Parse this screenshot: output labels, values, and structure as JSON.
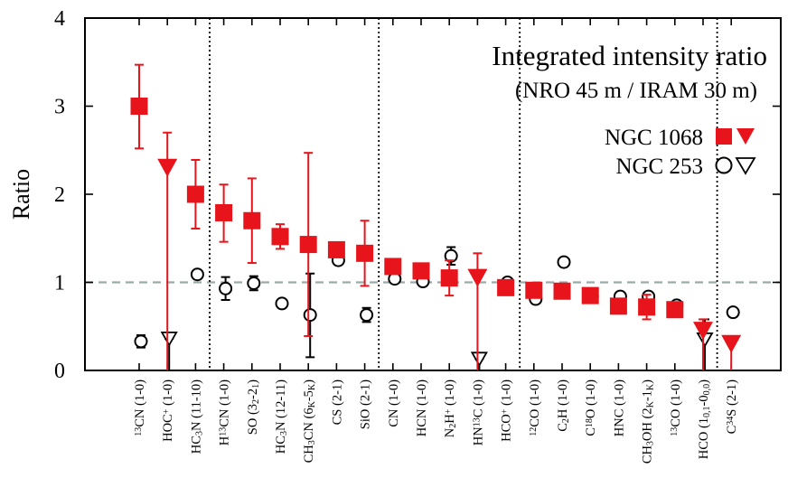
{
  "chart_data": {
    "type": "scatter",
    "title": "Integrated intensity ratio",
    "subtitle": "(NRO 45 m / IRAM 30 m)",
    "ylabel": "Ratio",
    "xlabel": "",
    "ylim": [
      0,
      4
    ],
    "yticks": [
      "0",
      "1",
      "2",
      "3",
      "4"
    ],
    "reference_line": 1,
    "separators_after_index": [
      2.5,
      8.5,
      13.5,
      20.5
    ],
    "categories": [
      {
        "main": "13CN (1-0)",
        "parts": [
          [
            "13",
            "sup"
          ],
          [
            "CN (1-0)",
            ""
          ]
        ]
      },
      {
        "main": "HOC+ (1-0)",
        "parts": [
          [
            "HOC",
            ""
          ],
          [
            "+",
            "sup"
          ],
          [
            " (1-0)",
            ""
          ]
        ]
      },
      {
        "main": "HC3N (11-10)",
        "parts": [
          [
            "HC",
            ""
          ],
          [
            "3",
            "sub"
          ],
          [
            "N (11-10)",
            ""
          ]
        ]
      },
      {
        "main": "H13CN (1-0)",
        "parts": [
          [
            "H",
            ""
          ],
          [
            "13",
            "sup"
          ],
          [
            "CN (1-0)",
            ""
          ]
        ]
      },
      {
        "main": "SO (32-21)",
        "parts": [
          [
            "SO (3",
            ""
          ],
          [
            "2",
            "sub"
          ],
          [
            "-2",
            ""
          ],
          [
            "1",
            "sub"
          ],
          [
            ")",
            ""
          ]
        ]
      },
      {
        "main": "HC3N (12-11)",
        "parts": [
          [
            "HC",
            ""
          ],
          [
            "3",
            "sub"
          ],
          [
            "N (12-11)",
            ""
          ]
        ]
      },
      {
        "main": "CH3CN (6K-5K)",
        "parts": [
          [
            "CH",
            ""
          ],
          [
            "3",
            "sub"
          ],
          [
            "CN (6",
            ""
          ],
          [
            "K",
            "sub"
          ],
          [
            "-5",
            ""
          ],
          [
            "K",
            "sub"
          ],
          [
            ")",
            ""
          ]
        ]
      },
      {
        "main": "CS (2-1)",
        "parts": [
          [
            "CS (2-1)",
            ""
          ]
        ]
      },
      {
        "main": "SiO (2-1)",
        "parts": [
          [
            "SiO (2-1)",
            ""
          ]
        ]
      },
      {
        "main": "CN (1-0)",
        "parts": [
          [
            "CN (1-0)",
            ""
          ]
        ]
      },
      {
        "main": "HCN (1-0)",
        "parts": [
          [
            "HCN (1-0)",
            ""
          ]
        ]
      },
      {
        "main": "N2H+ (1-0)",
        "parts": [
          [
            "N",
            ""
          ],
          [
            "2",
            "sub"
          ],
          [
            "H",
            ""
          ],
          [
            "+",
            "sup"
          ],
          [
            " (1-0)",
            ""
          ]
        ]
      },
      {
        "main": "HN13C (1-0)",
        "parts": [
          [
            "HN",
            ""
          ],
          [
            "13",
            "sup"
          ],
          [
            "C (1-0)",
            ""
          ]
        ]
      },
      {
        "main": "HCO+ (1-0)",
        "parts": [
          [
            "HCO",
            ""
          ],
          [
            "+",
            "sup"
          ],
          [
            " (1-0)",
            ""
          ]
        ]
      },
      {
        "main": "12CO (1-0)",
        "parts": [
          [
            "12",
            "sup"
          ],
          [
            "CO (1-0)",
            ""
          ]
        ]
      },
      {
        "main": "C2H (1-0)",
        "parts": [
          [
            "C",
            ""
          ],
          [
            "2",
            "sub"
          ],
          [
            "H (1-0)",
            ""
          ]
        ]
      },
      {
        "main": "C18O (1-0)",
        "parts": [
          [
            "C",
            ""
          ],
          [
            "18",
            "sup"
          ],
          [
            "O (1-0)",
            ""
          ]
        ]
      },
      {
        "main": "HNC (1-0)",
        "parts": [
          [
            "HNC (1-0)",
            ""
          ]
        ]
      },
      {
        "main": "CH3OH (2K-1K)",
        "parts": [
          [
            "CH",
            ""
          ],
          [
            "3",
            "sub"
          ],
          [
            "OH (2",
            ""
          ],
          [
            "K",
            "sub"
          ],
          [
            "-1",
            ""
          ],
          [
            "K",
            "sub"
          ],
          [
            ")",
            ""
          ]
        ]
      },
      {
        "main": "13CO (1-0)",
        "parts": [
          [
            "13",
            "sup"
          ],
          [
            "CO (1-0)",
            ""
          ]
        ]
      },
      {
        "main": "HCO (10,1-00,0)",
        "parts": [
          [
            "HCO (1",
            ""
          ],
          [
            "0,1",
            "sub"
          ],
          [
            "-0",
            ""
          ],
          [
            "0,0",
            "sub"
          ],
          [
            ")",
            ""
          ]
        ]
      },
      {
        "main": "C34S (2-1)",
        "parts": [
          [
            "C",
            ""
          ],
          [
            "34",
            "sup"
          ],
          [
            "S (2-1)",
            ""
          ]
        ]
      }
    ],
    "series": [
      {
        "name": "NGC 1068",
        "color": "#e8141b",
        "marker": "filled-square / filled-triangle (upper limit)",
        "points": [
          {
            "i": 0,
            "y": 3.0,
            "lo": 2.52,
            "hi": 3.47,
            "limit": false
          },
          {
            "i": 1,
            "y": 2.3,
            "lo": 0.0,
            "hi": 2.7,
            "limit": true
          },
          {
            "i": 2,
            "y": 2.0,
            "lo": 1.61,
            "hi": 2.39,
            "limit": false
          },
          {
            "i": 3,
            "y": 1.79,
            "lo": 1.46,
            "hi": 2.11,
            "limit": false
          },
          {
            "i": 4,
            "y": 1.7,
            "lo": 1.22,
            "hi": 2.18,
            "limit": false
          },
          {
            "i": 5,
            "y": 1.52,
            "lo": 1.38,
            "hi": 1.66,
            "limit": false
          },
          {
            "i": 6,
            "y": 1.43,
            "lo": 0.39,
            "hi": 2.47,
            "limit": false
          },
          {
            "i": 7,
            "y": 1.37,
            "lo": 1.32,
            "hi": 1.42,
            "limit": false
          },
          {
            "i": 8,
            "y": 1.33,
            "lo": 0.96,
            "hi": 1.7,
            "limit": false
          },
          {
            "i": 9,
            "y": 1.18,
            "lo": 1.14,
            "hi": 1.22,
            "limit": false
          },
          {
            "i": 10,
            "y": 1.13,
            "lo": 1.09,
            "hi": 1.17,
            "limit": false
          },
          {
            "i": 11,
            "y": 1.05,
            "lo": 0.85,
            "hi": 1.25,
            "limit": false
          },
          {
            "i": 12,
            "y": 1.05,
            "lo": 0.0,
            "hi": 1.33,
            "limit": true
          },
          {
            "i": 13,
            "y": 0.94,
            "lo": 0.91,
            "hi": 0.97,
            "limit": false
          },
          {
            "i": 14,
            "y": 0.91,
            "lo": 0.88,
            "hi": 0.94,
            "limit": false
          },
          {
            "i": 15,
            "y": 0.9,
            "lo": 0.87,
            "hi": 0.93,
            "limit": false
          },
          {
            "i": 16,
            "y": 0.85,
            "lo": 0.82,
            "hi": 0.88,
            "limit": false
          },
          {
            "i": 17,
            "y": 0.73,
            "lo": 0.7,
            "hi": 0.76,
            "limit": false
          },
          {
            "i": 18,
            "y": 0.72,
            "lo": 0.58,
            "hi": 0.86,
            "limit": false
          },
          {
            "i": 19,
            "y": 0.69,
            "lo": 0.66,
            "hi": 0.72,
            "limit": false
          },
          {
            "i": 20,
            "y": 0.45,
            "lo": 0.0,
            "hi": 0.58,
            "limit": true
          },
          {
            "i": 21,
            "y": 0.3,
            "lo": 0.0,
            "hi": 0.3,
            "limit": true
          }
        ]
      },
      {
        "name": "NGC 253",
        "color": "#000000",
        "marker": "open-circle / open-triangle (upper limit)",
        "points": [
          {
            "i": 0,
            "y": 0.33,
            "lo": 0.26,
            "hi": 0.4,
            "limit": false
          },
          {
            "i": 1,
            "y": 0.36,
            "lo": 0.0,
            "hi": 0.36,
            "limit": true
          },
          {
            "i": 2,
            "y": 1.09,
            "lo": 1.05,
            "hi": 1.13,
            "limit": false
          },
          {
            "i": 3,
            "y": 0.93,
            "lo": 0.8,
            "hi": 1.06,
            "limit": false
          },
          {
            "i": 4,
            "y": 0.99,
            "lo": 0.91,
            "hi": 1.07,
            "limit": false
          },
          {
            "i": 5,
            "y": 0.76,
            "lo": 0.72,
            "hi": 0.8,
            "limit": false
          },
          {
            "i": 6,
            "y": 0.63,
            "lo": 0.15,
            "hi": 1.1,
            "limit": false
          },
          {
            "i": 7,
            "y": 1.25,
            "lo": 1.22,
            "hi": 1.28,
            "limit": false
          },
          {
            "i": 8,
            "y": 0.63,
            "lo": 0.55,
            "hi": 0.71,
            "limit": false
          },
          {
            "i": 9,
            "y": 1.04,
            "lo": 1.01,
            "hi": 1.07,
            "limit": false
          },
          {
            "i": 10,
            "y": 1.01,
            "lo": 0.98,
            "hi": 1.04,
            "limit": false
          },
          {
            "i": 11,
            "y": 1.3,
            "lo": 1.2,
            "hi": 1.4,
            "limit": false
          },
          {
            "i": 12,
            "y": 0.13,
            "lo": 0.0,
            "hi": 0.13,
            "limit": true
          },
          {
            "i": 13,
            "y": 1.0,
            "lo": 0.97,
            "hi": 1.03,
            "limit": false
          },
          {
            "i": 14,
            "y": 0.81,
            "lo": 0.78,
            "hi": 0.84,
            "limit": false
          },
          {
            "i": 15,
            "y": 1.23,
            "lo": 1.19,
            "hi": 1.27,
            "limit": false
          },
          {
            "i": 16,
            "y": 0.84,
            "lo": 0.81,
            "hi": 0.87,
            "limit": false
          },
          {
            "i": 17,
            "y": 0.84,
            "lo": 0.81,
            "hi": 0.87,
            "limit": false
          },
          {
            "i": 18,
            "y": 0.84,
            "lo": 0.81,
            "hi": 0.87,
            "limit": false
          },
          {
            "i": 19,
            "y": 0.74,
            "lo": 0.71,
            "hi": 0.77,
            "limit": false
          },
          {
            "i": 20,
            "y": 0.35,
            "lo": 0.0,
            "hi": 0.58,
            "limit": true
          },
          {
            "i": 21,
            "y": 0.66,
            "lo": 0.62,
            "hi": 0.7,
            "limit": false
          }
        ]
      }
    ],
    "legend": [
      {
        "label": "NGC 1068",
        "symbols": "filled square + filled triangle",
        "color": "#e8141b"
      },
      {
        "label": "NGC 253",
        "symbols": "open circle + open triangle",
        "color": "#000000"
      }
    ]
  }
}
